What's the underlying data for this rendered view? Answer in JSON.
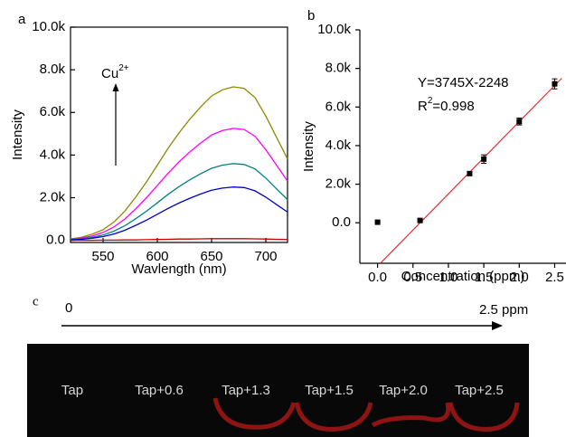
{
  "chart_data": [
    {
      "type": "line",
      "panel_label": "a",
      "x_label": "Wavlength (nm)",
      "y_label": "Intensity",
      "annotation": {
        "text": "Cu",
        "superscript": "2+"
      },
      "x": [
        520,
        530,
        540,
        550,
        560,
        570,
        580,
        590,
        600,
        610,
        620,
        630,
        640,
        650,
        660,
        670,
        680,
        690,
        700,
        710,
        720
      ],
      "series": [
        {
          "color": "#8b8b00",
          "values": [
            70,
            140,
            290,
            500,
            860,
            1370,
            2020,
            2740,
            3530,
            4320,
            5040,
            5690,
            6260,
            6770,
            7060,
            7200,
            7130,
            6700,
            5830,
            4820,
            3820
          ]
        },
        {
          "color": "#ff00ff",
          "values": [
            50,
            105,
            210,
            370,
            630,
            1000,
            1470,
            2000,
            2570,
            3150,
            3680,
            4150,
            4570,
            4940,
            5150,
            5250,
            5200,
            4880,
            4250,
            3520,
            2780
          ]
        },
        {
          "color": "#008080",
          "values": [
            40,
            70,
            140,
            250,
            430,
            680,
            1010,
            1370,
            1760,
            2160,
            2520,
            2840,
            3130,
            3380,
            3530,
            3600,
            3560,
            3350,
            2920,
            2410,
            1910
          ]
        },
        {
          "color": "#0000cc",
          "values": [
            25,
            50,
            100,
            175,
            300,
            475,
            700,
            950,
            1225,
            1500,
            1750,
            1975,
            2175,
            2350,
            2450,
            2500,
            2475,
            2325,
            2025,
            1675,
            1325
          ]
        },
        {
          "color": "#cc0000",
          "values": [
            0,
            0,
            0,
            10,
            10,
            20,
            20,
            30,
            40,
            50,
            60,
            60,
            70,
            80,
            80,
            80,
            80,
            70,
            60,
            50,
            40
          ]
        }
      ],
      "xlim": [
        520,
        720
      ],
      "xticks": [
        550,
        600,
        650,
        700
      ],
      "ylim": [
        -100,
        10000
      ],
      "yticks": [
        {
          "value": 0,
          "label": "0.0"
        },
        {
          "value": 2000,
          "label": "2.0k"
        },
        {
          "value": 4000,
          "label": "4.0k"
        },
        {
          "value": 6000,
          "label": "6.0k"
        },
        {
          "value": 8000,
          "label": "8.0k"
        },
        {
          "value": 10000,
          "label": "10.0k"
        }
      ],
      "grid": false
    },
    {
      "type": "scatter",
      "panel_label": "b",
      "x_label": "Concentration (ppm)",
      "y_label": "Intensity",
      "equation": "Y=3745X-2248",
      "r2": {
        "text": "R",
        "superscript": "2",
        "suffix": "=0.998"
      },
      "x": [
        0,
        0.6,
        1.3,
        1.5,
        2.0,
        2.5
      ],
      "values": [
        30,
        120,
        2550,
        3300,
        5250,
        7200
      ],
      "errors": [
        20,
        60,
        80,
        220,
        180,
        260
      ],
      "color": "#000000",
      "fit_line": {
        "color": "#e03030",
        "x": [
          0.05,
          2.6
        ],
        "y": [
          -2061,
          7489
        ]
      },
      "xlim": [
        -0.25,
        2.66
      ],
      "xticks": [
        {
          "value": 0,
          "label": "0.0"
        },
        0.5,
        {
          "value": 1,
          "label": "1.0"
        },
        1.5,
        {
          "value": 2,
          "label": "2.0"
        },
        2.5
      ],
      "ylim": [
        -2100,
        10000
      ],
      "yticks": [
        {
          "value": 0,
          "label": "0.0"
        },
        {
          "value": 2000,
          "label": "2.0k"
        },
        {
          "value": 4000,
          "label": "4.0k"
        },
        {
          "value": 6000,
          "label": "6.0k"
        },
        {
          "value": 8000,
          "label": "8.0k"
        },
        {
          "value": 10000,
          "label": "10.0k"
        }
      ],
      "grid": false
    }
  ],
  "panel_c": {
    "label": "c",
    "scale_start": "0",
    "scale_end": "2.5 ppm",
    "samples": [
      "Tap",
      "Tap+0.6",
      "Tap+1.3",
      "Tap+1.5",
      "Tap+2.0",
      "Tap+2.5"
    ]
  }
}
